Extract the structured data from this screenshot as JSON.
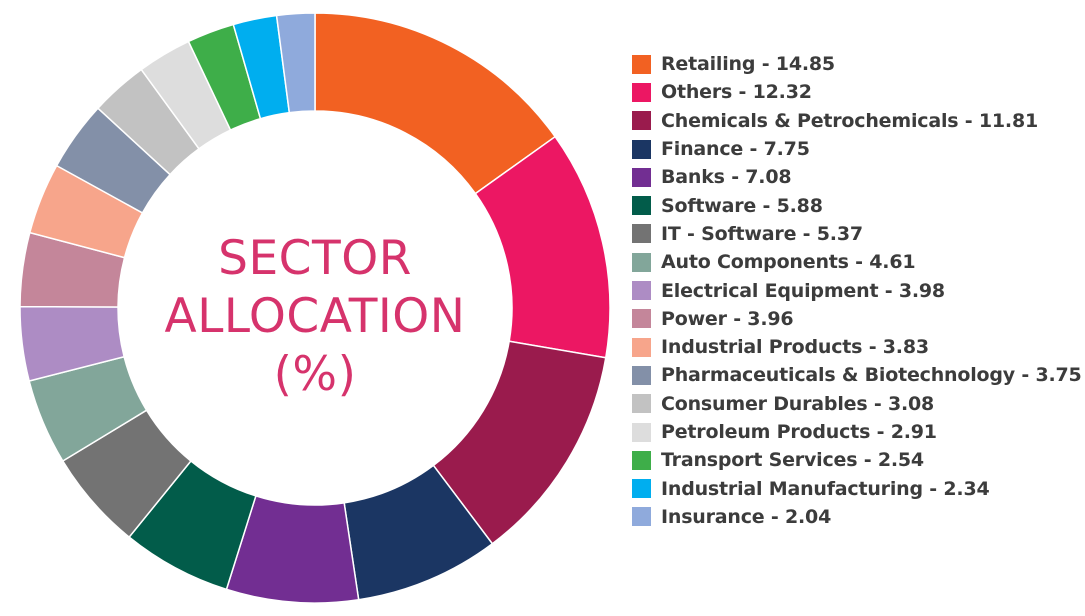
{
  "chart_data": {
    "type": "pie",
    "title": "SECTOR ALLOCATION (%)",
    "title_lines": [
      "SECTOR",
      "ALLOCATION",
      "(%)"
    ],
    "donut": true,
    "legend_position": "right",
    "title_color": "#d6336c",
    "slices": [
      {
        "label": "Retailing - 14.85",
        "name": "Retailing",
        "value": 14.85,
        "color": "#f26122"
      },
      {
        "label": "Others - 12.32",
        "name": "Others",
        "value": 12.32,
        "color": "#ec1763"
      },
      {
        "label": "Chemicals & Petrochemicals - 11.81",
        "name": "Chemicals & Petrochemicals",
        "value": 11.81,
        "color": "#9a1b4d"
      },
      {
        "label": "Finance - 7.75",
        "name": "Finance",
        "value": 7.75,
        "color": "#1b3663"
      },
      {
        "label": "Banks - 7.08",
        "name": "Banks",
        "value": 7.08,
        "color": "#722e92"
      },
      {
        "label": "Software - 5.88",
        "name": "Software",
        "value": 5.88,
        "color": "#025c4a"
      },
      {
        "label": "IT - Software - 5.37",
        "name": "IT - Software",
        "value": 5.37,
        "color": "#737373"
      },
      {
        "label": "Auto Components - 4.61",
        "name": "Auto Components",
        "value": 4.61,
        "color": "#82a69a"
      },
      {
        "label": "Electrical Equipment - 3.98",
        "name": "Electrical Equipment",
        "value": 3.98,
        "color": "#ad8cc4"
      },
      {
        "label": "Power - 3.96",
        "name": "Power",
        "value": 3.96,
        "color": "#c4869a"
      },
      {
        "label": "Industrial Products - 3.83",
        "name": "Industrial Products",
        "value": 3.83,
        "color": "#f7a58b"
      },
      {
        "label": "Pharmaceuticals & Biotechnology - 3.75",
        "name": "Pharmaceuticals & Biotechnology",
        "value": 3.75,
        "color": "#8390a8"
      },
      {
        "label": "Consumer Durables - 3.08",
        "name": "Consumer Durables",
        "value": 3.08,
        "color": "#c2c2c2"
      },
      {
        "label": "Petroleum Products - 2.91",
        "name": "Petroleum Products",
        "value": 2.91,
        "color": "#dddddd"
      },
      {
        "label": "Transport Services - 2.54",
        "name": "Transport Services",
        "value": 2.54,
        "color": "#3eae49"
      },
      {
        "label": "Industrial Manufacturing - 2.34",
        "name": "Industrial Manufacturing",
        "value": 2.34,
        "color": "#00aeef"
      },
      {
        "label": "Insurance - 2.04",
        "name": "Insurance",
        "value": 2.04,
        "color": "#8faadc"
      }
    ]
  }
}
